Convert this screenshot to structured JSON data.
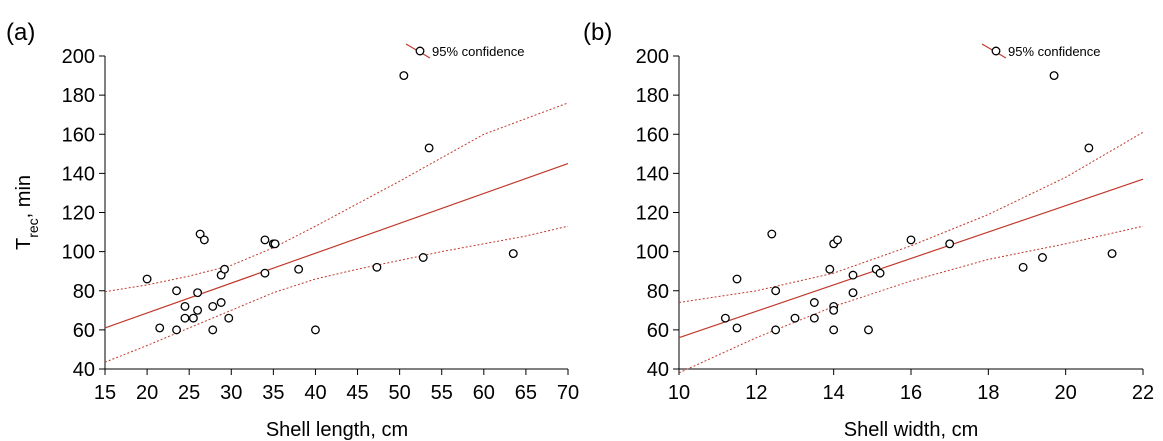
{
  "chart_data": [
    {
      "panel_label": "(a)",
      "type": "scatter",
      "xlabel": "Shell length, cm",
      "ylabel_main": "T",
      "ylabel_sub": "rec",
      "ylabel_suffix": ", min",
      "xlim": [
        15,
        70
      ],
      "ylim": [
        40,
        200
      ],
      "xticks": [
        15,
        20,
        25,
        30,
        35,
        40,
        45,
        50,
        55,
        60,
        65,
        70
      ],
      "yticks": [
        40,
        60,
        80,
        100,
        120,
        140,
        160,
        180,
        200
      ],
      "grid": false,
      "legend": {
        "label": "95% confidence",
        "placement": "top-right"
      },
      "points": [
        [
          20,
          86
        ],
        [
          21.5,
          61
        ],
        [
          23.5,
          80
        ],
        [
          23.5,
          60
        ],
        [
          24.5,
          66
        ],
        [
          24.5,
          72
        ],
        [
          25.5,
          66
        ],
        [
          26,
          79
        ],
        [
          26,
          70
        ],
        [
          26.3,
          109
        ],
        [
          26.8,
          106
        ],
        [
          27.8,
          60
        ],
        [
          27.8,
          72
        ],
        [
          28.8,
          74
        ],
        [
          28.8,
          88
        ],
        [
          29.2,
          91
        ],
        [
          29.7,
          66
        ],
        [
          34,
          106
        ],
        [
          34,
          89
        ],
        [
          35,
          104
        ],
        [
          35.2,
          104
        ],
        [
          38,
          91
        ],
        [
          40,
          60
        ],
        [
          47.3,
          92
        ],
        [
          50.5,
          190
        ],
        [
          52.8,
          97
        ],
        [
          53.5,
          153
        ],
        [
          63.5,
          99
        ]
      ],
      "fit_line": [
        [
          15,
          61
        ],
        [
          70,
          145
        ]
      ],
      "ci_upper": [
        [
          15,
          79.5
        ],
        [
          20,
          83
        ],
        [
          25,
          87.5
        ],
        [
          30,
          93
        ],
        [
          35,
          102
        ],
        [
          40,
          113
        ],
        [
          45,
          124.5
        ],
        [
          50,
          136
        ],
        [
          55,
          148
        ],
        [
          60,
          160
        ],
        [
          65,
          168
        ],
        [
          70,
          176
        ]
      ],
      "ci_lower": [
        [
          15,
          43.5
        ],
        [
          20,
          52
        ],
        [
          25,
          61
        ],
        [
          30,
          70
        ],
        [
          35,
          79
        ],
        [
          40,
          86
        ],
        [
          45,
          91
        ],
        [
          50,
          95.5
        ],
        [
          55,
          100
        ],
        [
          60,
          104
        ],
        [
          65,
          108
        ],
        [
          70,
          113
        ]
      ]
    },
    {
      "panel_label": "(b)",
      "type": "scatter",
      "xlabel": "Shell width, cm",
      "xlim": [
        10,
        22
      ],
      "ylim": [
        40,
        200
      ],
      "xticks": [
        10,
        12,
        14,
        16,
        18,
        20,
        22
      ],
      "yticks": [
        40,
        60,
        80,
        100,
        120,
        140,
        160,
        180,
        200
      ],
      "grid": false,
      "legend": {
        "label": "95% confidence",
        "placement": "top-right"
      },
      "points": [
        [
          11.2,
          66
        ],
        [
          11.5,
          86
        ],
        [
          11.5,
          61
        ],
        [
          12.4,
          109
        ],
        [
          12.5,
          80
        ],
        [
          12.5,
          60
        ],
        [
          13,
          66
        ],
        [
          13.5,
          74
        ],
        [
          13.5,
          66
        ],
        [
          13.9,
          91
        ],
        [
          14,
          104
        ],
        [
          14,
          72
        ],
        [
          14,
          70
        ],
        [
          14,
          60
        ],
        [
          14.1,
          106
        ],
        [
          14.5,
          88
        ],
        [
          14.5,
          79
        ],
        [
          14.9,
          60
        ],
        [
          15.1,
          91
        ],
        [
          15.2,
          89
        ],
        [
          16,
          106
        ],
        [
          17,
          104
        ],
        [
          18.9,
          92
        ],
        [
          19.4,
          97
        ],
        [
          19.7,
          190
        ],
        [
          20.6,
          153
        ],
        [
          21.2,
          99
        ]
      ],
      "fit_line": [
        [
          10,
          56
        ],
        [
          22,
          137
        ]
      ],
      "ci_upper": [
        [
          10,
          74
        ],
        [
          12,
          80
        ],
        [
          14,
          89
        ],
        [
          16,
          103
        ],
        [
          18,
          119
        ],
        [
          20,
          138
        ],
        [
          22,
          161
        ]
      ],
      "ci_lower": [
        [
          10,
          38
        ],
        [
          12,
          56
        ],
        [
          14,
          72
        ],
        [
          16,
          85
        ],
        [
          18,
          96
        ],
        [
          20,
          104
        ],
        [
          22,
          113
        ]
      ]
    }
  ]
}
